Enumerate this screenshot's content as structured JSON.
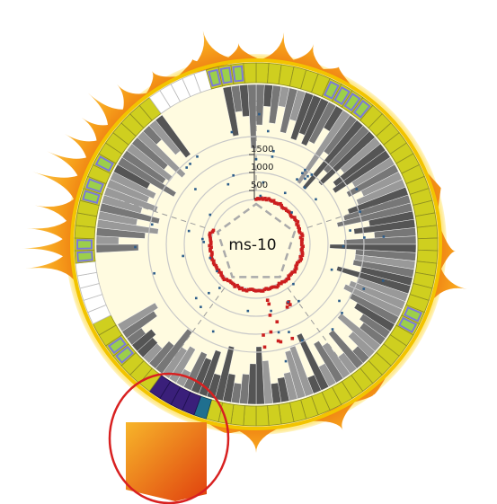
{
  "center_label": "ms-10",
  "scale_ticks": [
    "500",
    "1000",
    "1500"
  ],
  "colors": {
    "track_yellow": "#cfcf1f",
    "track_green": "#9ccf4a",
    "track_blue_border": "#7a7ad8",
    "track_white": "#ffffff",
    "gray_dark": "#555555",
    "gray_mid": "#777777",
    "gray_light": "#999999",
    "spike_outer": "#ffe060",
    "spike_inner": "#f08010",
    "glow": "#fff3b0",
    "red_dots": "#cc1f1f",
    "blue_dots": "#2b5c8a",
    "navy": "#3a1f7a",
    "teal": "#1f6f8f",
    "highlight_circle": "#d82020",
    "gridline": "#c8c8c8"
  }
}
